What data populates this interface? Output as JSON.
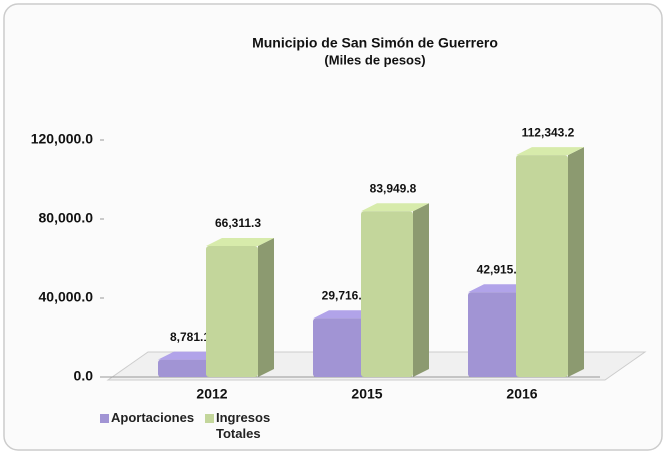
{
  "chart_data": {
    "type": "bar3d",
    "title": "Municipio de San Simón de Guerrero",
    "subtitle": "(Miles de pesos)",
    "categories": [
      "2012",
      "2015",
      "2016"
    ],
    "series": [
      {
        "name": "Aportaciones",
        "color": "#a194d4",
        "values": [
          8781.1,
          29716.6,
          42915.0
        ],
        "value_labels": [
          "8,781.1",
          "29,716.6",
          "42,915.0"
        ]
      },
      {
        "name": "Ingresos Totales",
        "color": "#c3d69b",
        "values": [
          66311.3,
          83949.8,
          112343.2
        ],
        "value_labels": [
          "66,311.3",
          "83,949.8",
          "112,343.2"
        ]
      }
    ],
    "ylim": [
      0,
      120000
    ],
    "yticks": [
      {
        "value": 0,
        "label": "0.0"
      },
      {
        "value": 40000,
        "label": "40,000.0"
      },
      {
        "value": 80000,
        "label": "80,000.0"
      },
      {
        "value": 120000,
        "label": "120,000.0"
      }
    ],
    "legend": "bottom-left"
  }
}
